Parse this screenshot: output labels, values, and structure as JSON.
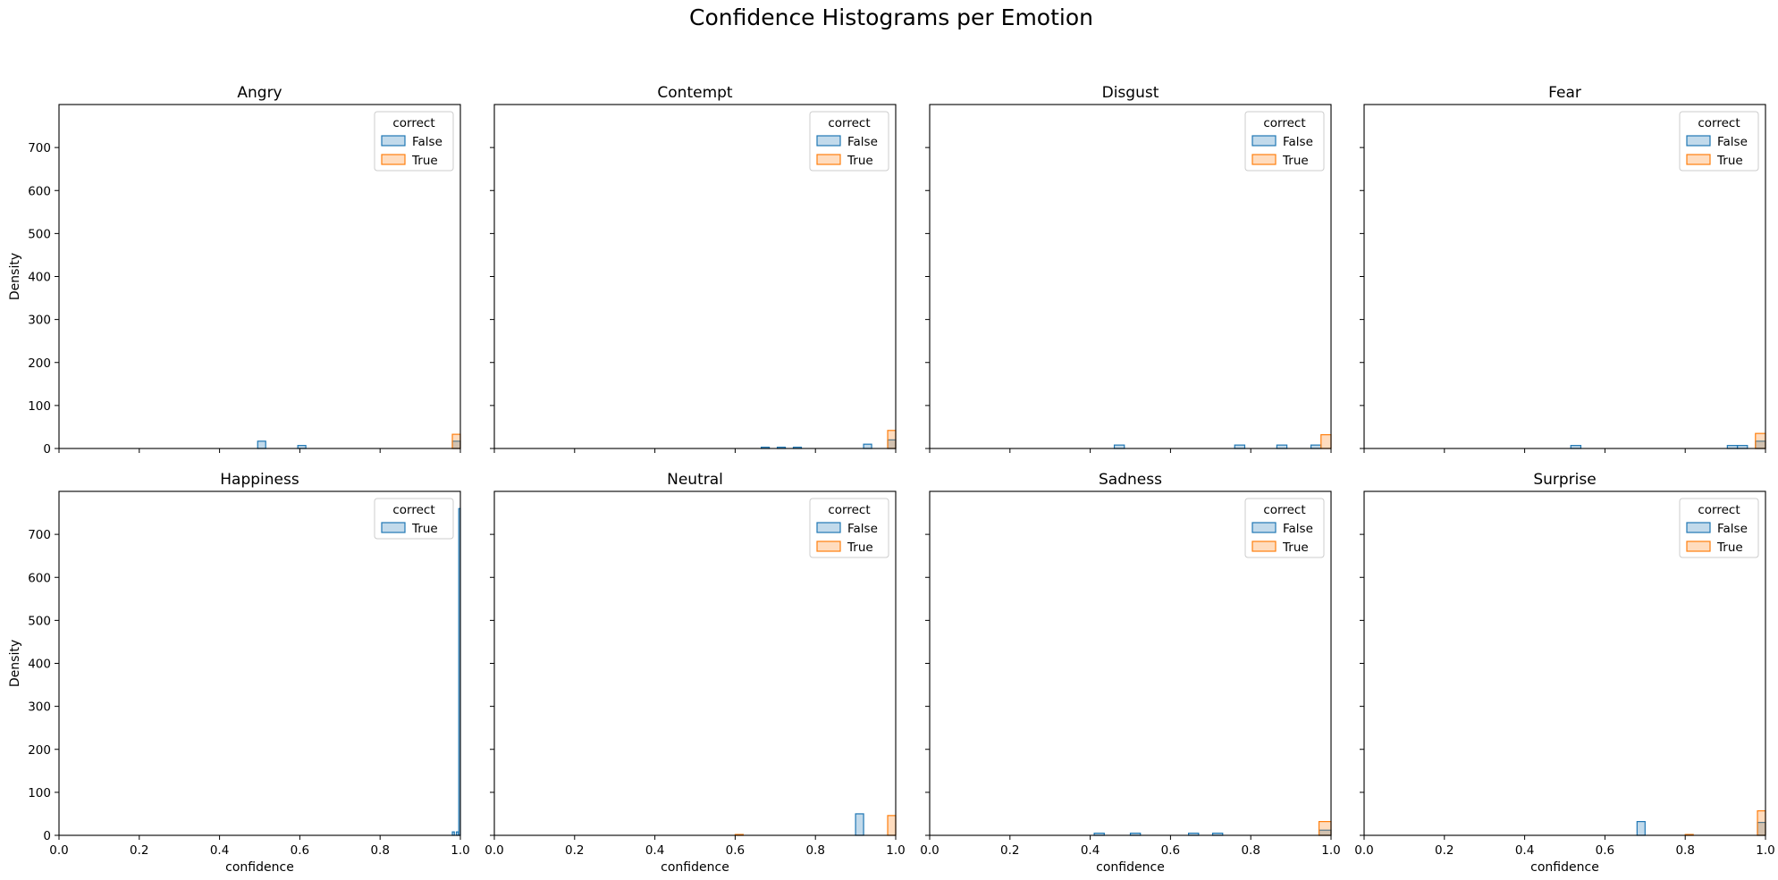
{
  "title": "Confidence Histograms per Emotion",
  "colors": {
    "False": "#1f77b4",
    "True": "#ff7f0e"
  },
  "chart_data": [
    {
      "type": "bar",
      "title": "Angry",
      "xlabel": "",
      "ylabel": "Density",
      "xlim": [
        0,
        1
      ],
      "ylim": [
        0,
        800
      ],
      "xticks": [
        "0.0",
        "0.2",
        "0.4",
        "0.6",
        "0.8",
        "1.0"
      ],
      "yticks": [
        "0",
        "100",
        "200",
        "300",
        "400",
        "500",
        "600",
        "700"
      ],
      "legend": {
        "title": "correct",
        "entries": [
          "False",
          "True"
        ],
        "placement": "top-right"
      },
      "series": [
        {
          "name": "False",
          "bars": [
            {
              "x0": 0.495,
              "x1": 0.515,
              "y": 17
            },
            {
              "x0": 0.595,
              "x1": 0.615,
              "y": 7
            },
            {
              "x0": 0.98,
              "x1": 1.0,
              "y": 17
            }
          ]
        },
        {
          "name": "True",
          "bars": [
            {
              "x0": 0.98,
              "x1": 1.0,
              "y": 33
            }
          ]
        }
      ]
    },
    {
      "type": "bar",
      "title": "Contempt",
      "xlabel": "",
      "ylabel": "",
      "xlim": [
        0,
        1
      ],
      "ylim": [
        0,
        800
      ],
      "xticks": [
        "0.0",
        "0.2",
        "0.4",
        "0.6",
        "0.8",
        "1.0"
      ],
      "yticks": [
        "0",
        "100",
        "200",
        "300",
        "400",
        "500",
        "600",
        "700"
      ],
      "legend": {
        "title": "correct",
        "entries": [
          "False",
          "True"
        ],
        "placement": "top-right"
      },
      "series": [
        {
          "name": "False",
          "bars": [
            {
              "x0": 0.665,
              "x1": 0.685,
              "y": 3
            },
            {
              "x0": 0.705,
              "x1": 0.725,
              "y": 3
            },
            {
              "x0": 0.745,
              "x1": 0.765,
              "y": 3
            },
            {
              "x0": 0.92,
              "x1": 0.94,
              "y": 10
            },
            {
              "x0": 0.98,
              "x1": 1.0,
              "y": 20
            }
          ]
        },
        {
          "name": "True",
          "bars": [
            {
              "x0": 0.98,
              "x1": 1.0,
              "y": 42
            }
          ]
        }
      ]
    },
    {
      "type": "bar",
      "title": "Disgust",
      "xlabel": "",
      "ylabel": "",
      "xlim": [
        0,
        1
      ],
      "ylim": [
        0,
        800
      ],
      "xticks": [
        "0.0",
        "0.2",
        "0.4",
        "0.6",
        "0.8",
        "1.0"
      ],
      "yticks": [
        "0",
        "100",
        "200",
        "300",
        "400",
        "500",
        "600",
        "700"
      ],
      "legend": {
        "title": "correct",
        "entries": [
          "False",
          "True"
        ],
        "placement": "top-right"
      },
      "series": [
        {
          "name": "False",
          "bars": [
            {
              "x0": 0.46,
              "x1": 0.485,
              "y": 8
            },
            {
              "x0": 0.76,
              "x1": 0.785,
              "y": 8
            },
            {
              "x0": 0.865,
              "x1": 0.89,
              "y": 8
            },
            {
              "x0": 0.95,
              "x1": 0.975,
              "y": 8
            }
          ]
        },
        {
          "name": "True",
          "bars": [
            {
              "x0": 0.975,
              "x1": 1.0,
              "y": 32
            }
          ]
        }
      ]
    },
    {
      "type": "bar",
      "title": "Fear",
      "xlabel": "",
      "ylabel": "",
      "xlim": [
        0,
        1
      ],
      "ylim": [
        0,
        800
      ],
      "xticks": [
        "0.0",
        "0.2",
        "0.4",
        "0.6",
        "0.8",
        "1.0"
      ],
      "yticks": [
        "0",
        "100",
        "200",
        "300",
        "400",
        "500",
        "600",
        "700"
      ],
      "legend": {
        "title": "correct",
        "entries": [
          "False",
          "True"
        ],
        "placement": "top-right"
      },
      "series": [
        {
          "name": "False",
          "bars": [
            {
              "x0": 0.515,
              "x1": 0.54,
              "y": 7
            },
            {
              "x0": 0.905,
              "x1": 0.93,
              "y": 7
            },
            {
              "x0": 0.93,
              "x1": 0.955,
              "y": 7
            },
            {
              "x0": 0.975,
              "x1": 1.0,
              "y": 17
            }
          ]
        },
        {
          "name": "True",
          "bars": [
            {
              "x0": 0.975,
              "x1": 1.0,
              "y": 35
            }
          ]
        }
      ]
    },
    {
      "type": "bar",
      "title": "Happiness",
      "xlabel": "confidence",
      "ylabel": "Density",
      "xlim": [
        0,
        1
      ],
      "ylim": [
        0,
        800
      ],
      "xticks": [
        "0.0",
        "0.2",
        "0.4",
        "0.6",
        "0.8",
        "1.0"
      ],
      "yticks": [
        "0",
        "100",
        "200",
        "300",
        "400",
        "500",
        "600",
        "700"
      ],
      "legend": {
        "title": "correct",
        "entries": [
          "True"
        ],
        "placement": "top-right"
      },
      "series": [
        {
          "name": "True",
          "color_key": "False",
          "bars": [
            {
              "x0": 0.98,
              "x1": 0.985,
              "y": 8
            },
            {
              "x0": 0.99,
              "x1": 0.995,
              "y": 8
            },
            {
              "x0": 0.996,
              "x1": 1.0,
              "y": 760
            }
          ]
        }
      ]
    },
    {
      "type": "bar",
      "title": "Neutral",
      "xlabel": "confidence",
      "ylabel": "",
      "xlim": [
        0,
        1
      ],
      "ylim": [
        0,
        800
      ],
      "xticks": [
        "0.0",
        "0.2",
        "0.4",
        "0.6",
        "0.8",
        "1.0"
      ],
      "yticks": [
        "0",
        "100",
        "200",
        "300",
        "400",
        "500",
        "600",
        "700"
      ],
      "legend": {
        "title": "correct",
        "entries": [
          "False",
          "True"
        ],
        "placement": "top-right"
      },
      "series": [
        {
          "name": "False",
          "bars": [
            {
              "x0": 0.9,
              "x1": 0.92,
              "y": 50
            }
          ]
        },
        {
          "name": "True",
          "bars": [
            {
              "x0": 0.6,
              "x1": 0.62,
              "y": 2
            },
            {
              "x0": 0.98,
              "x1": 1.0,
              "y": 46
            }
          ]
        }
      ]
    },
    {
      "type": "bar",
      "title": "Sadness",
      "xlabel": "confidence",
      "ylabel": "",
      "xlim": [
        0,
        1
      ],
      "ylim": [
        0,
        800
      ],
      "xticks": [
        "0.0",
        "0.2",
        "0.4",
        "0.6",
        "0.8",
        "1.0"
      ],
      "yticks": [
        "0",
        "100",
        "200",
        "300",
        "400",
        "500",
        "600",
        "700"
      ],
      "legend": {
        "title": "correct",
        "entries": [
          "False",
          "True"
        ],
        "placement": "top-right"
      },
      "series": [
        {
          "name": "False",
          "bars": [
            {
              "x0": 0.41,
              "x1": 0.435,
              "y": 5
            },
            {
              "x0": 0.5,
              "x1": 0.525,
              "y": 5
            },
            {
              "x0": 0.645,
              "x1": 0.67,
              "y": 5
            },
            {
              "x0": 0.705,
              "x1": 0.73,
              "y": 5
            },
            {
              "x0": 0.97,
              "x1": 1.0,
              "y": 12
            }
          ]
        },
        {
          "name": "True",
          "bars": [
            {
              "x0": 0.97,
              "x1": 1.0,
              "y": 32
            }
          ]
        }
      ]
    },
    {
      "type": "bar",
      "title": "Surprise",
      "xlabel": "confidence",
      "ylabel": "",
      "xlim": [
        0,
        1
      ],
      "ylim": [
        0,
        800
      ],
      "xticks": [
        "0.0",
        "0.2",
        "0.4",
        "0.6",
        "0.8",
        "1.0"
      ],
      "yticks": [
        "0",
        "100",
        "200",
        "300",
        "400",
        "500",
        "600",
        "700"
      ],
      "legend": {
        "title": "correct",
        "entries": [
          "False",
          "True"
        ],
        "placement": "top-right"
      },
      "series": [
        {
          "name": "False",
          "bars": [
            {
              "x0": 0.68,
              "x1": 0.7,
              "y": 32
            },
            {
              "x0": 0.98,
              "x1": 1.0,
              "y": 30
            }
          ]
        },
        {
          "name": "True",
          "bars": [
            {
              "x0": 0.8,
              "x1": 0.82,
              "y": 2
            },
            {
              "x0": 0.98,
              "x1": 1.0,
              "y": 57
            }
          ]
        }
      ]
    }
  ]
}
